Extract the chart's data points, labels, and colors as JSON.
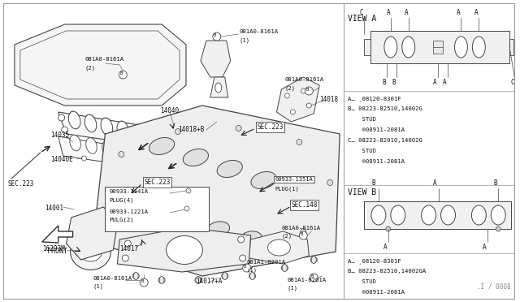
{
  "bg_color": "#ffffff",
  "fig_width": 6.4,
  "fig_height": 3.72,
  "dpi": 100,
  "watermark": ".I / 0008",
  "view_a_notes": [
    "A… ¸08120-8301F",
    "B… 08223-82510,14002G",
    "    STUD",
    "    ®08911-2081A",
    "C… 08223-82010,14002G",
    "    STUD",
    "    ®08911-2081A"
  ],
  "view_b_notes": [
    "A… ¸08120-8301F",
    "B… 08223-82510,14002GA",
    "    STUD",
    "    ®08911-2081A"
  ]
}
